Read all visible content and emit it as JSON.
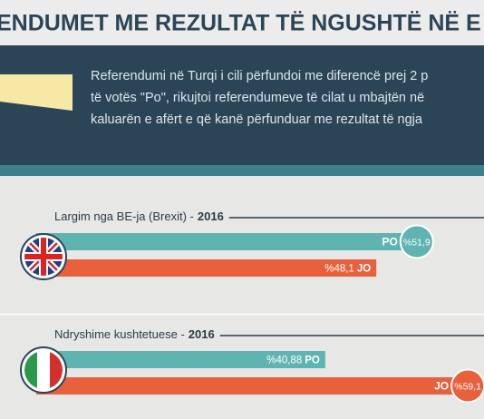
{
  "title": "ENDUMET ME REZULTAT TË NGUSHTË NË E",
  "intro": [
    "Referendumi në Turqi i cili përfundoi me diferencë prej 2 p",
    "të votës \"Po\", rikujtoi referendumeve të cilat u mbajtën në",
    "kaluarën e afërt e që kanë përfunduar me rezultat të ngja"
  ],
  "chart_data": [
    {
      "type": "bar",
      "title": "Largim nga BE-ja (Brexit) -",
      "year": "2016",
      "categories": [
        "PO",
        "JO"
      ],
      "values": [
        51.9,
        48.1
      ],
      "value_labels": [
        "%51,9",
        "%48,1"
      ],
      "colors": [
        "#5fb4b2",
        "#e8603c"
      ]
    },
    {
      "type": "bar",
      "title": "Ndryshime kushtetuese -",
      "year": "2016",
      "categories": [
        "PO",
        "JO"
      ],
      "values": [
        40.88,
        59.12
      ],
      "value_labels": [
        "%40,88",
        "%59,1"
      ],
      "colors": [
        "#5fb4b2",
        "#e8603c"
      ]
    }
  ]
}
